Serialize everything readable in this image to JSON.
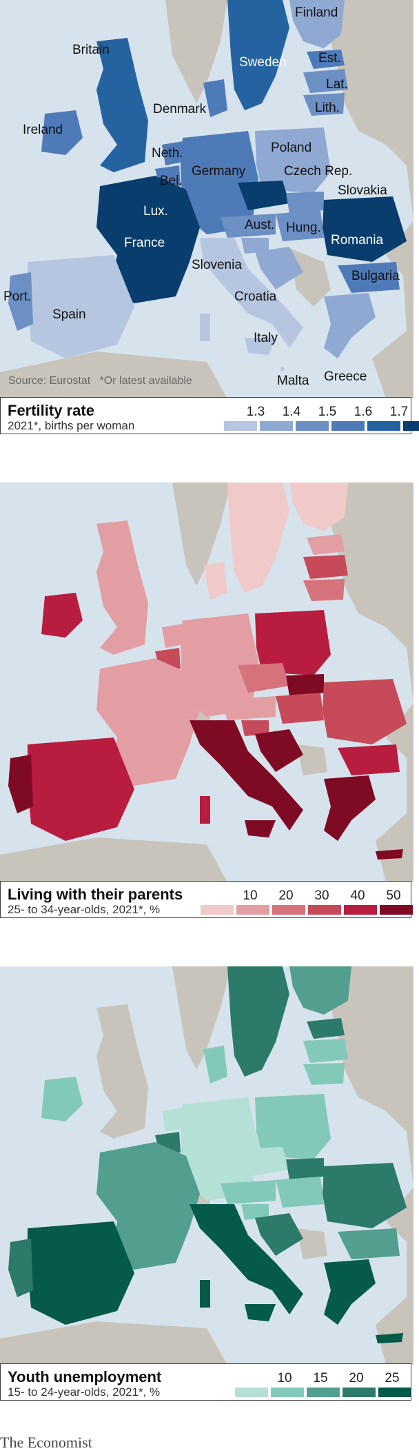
{
  "source": "Source: Eurostat",
  "footnote": "*Or latest available",
  "footer": "The Economist",
  "fertility": {
    "title": "Fertility rate",
    "subtitle": "2021*, births per woman",
    "ticks": [
      "1.3",
      "1.4",
      "1.5",
      "1.6",
      "1.7"
    ],
    "colors": [
      "#b7c6e0",
      "#8fa9d2",
      "#6c8fc4",
      "#4f7ab8",
      "#2563a0",
      "#083d6e"
    ],
    "labels": {
      "finland": "Finland",
      "britain": "Britain",
      "sweden": "Sweden",
      "est": "Est.",
      "lat": "Lat.",
      "denmark": "Denmark",
      "lith": "Lith.",
      "ireland": "Ireland",
      "neth": "Neth.",
      "poland": "Poland",
      "bel": "Bel.",
      "germany": "Germany",
      "czech": "Czech Rep.",
      "slovakia": "Slovakia",
      "lux": "Lux.",
      "aust": "Aust.",
      "hung": "Hung.",
      "romania": "Romania",
      "france": "France",
      "slovenia": "Slovenia",
      "bulgaria": "Bulgaria",
      "port": "Port.",
      "croatia": "Croatia",
      "spain": "Spain",
      "italy": "Italy",
      "malta": "Malta",
      "greece": "Greece"
    }
  },
  "parents": {
    "title": "Living with their parents",
    "subtitle": "25- to 34-year-olds, 2021*, %",
    "ticks": [
      "10",
      "20",
      "30",
      "40",
      "50"
    ],
    "colors": [
      "#f0c9c9",
      "#e39ea3",
      "#d6727c",
      "#c64a59",
      "#b81c3f",
      "#7e0a24"
    ]
  },
  "youth": {
    "title": "Youth unemployment",
    "subtitle": "15- to 24-year-olds, 2021*, %",
    "ticks": [
      "10",
      "15",
      "20",
      "25"
    ],
    "colors": [
      "#b5e0d6",
      "#82c9ba",
      "#539f8f",
      "#2c7a6a",
      "#055a49"
    ]
  }
}
